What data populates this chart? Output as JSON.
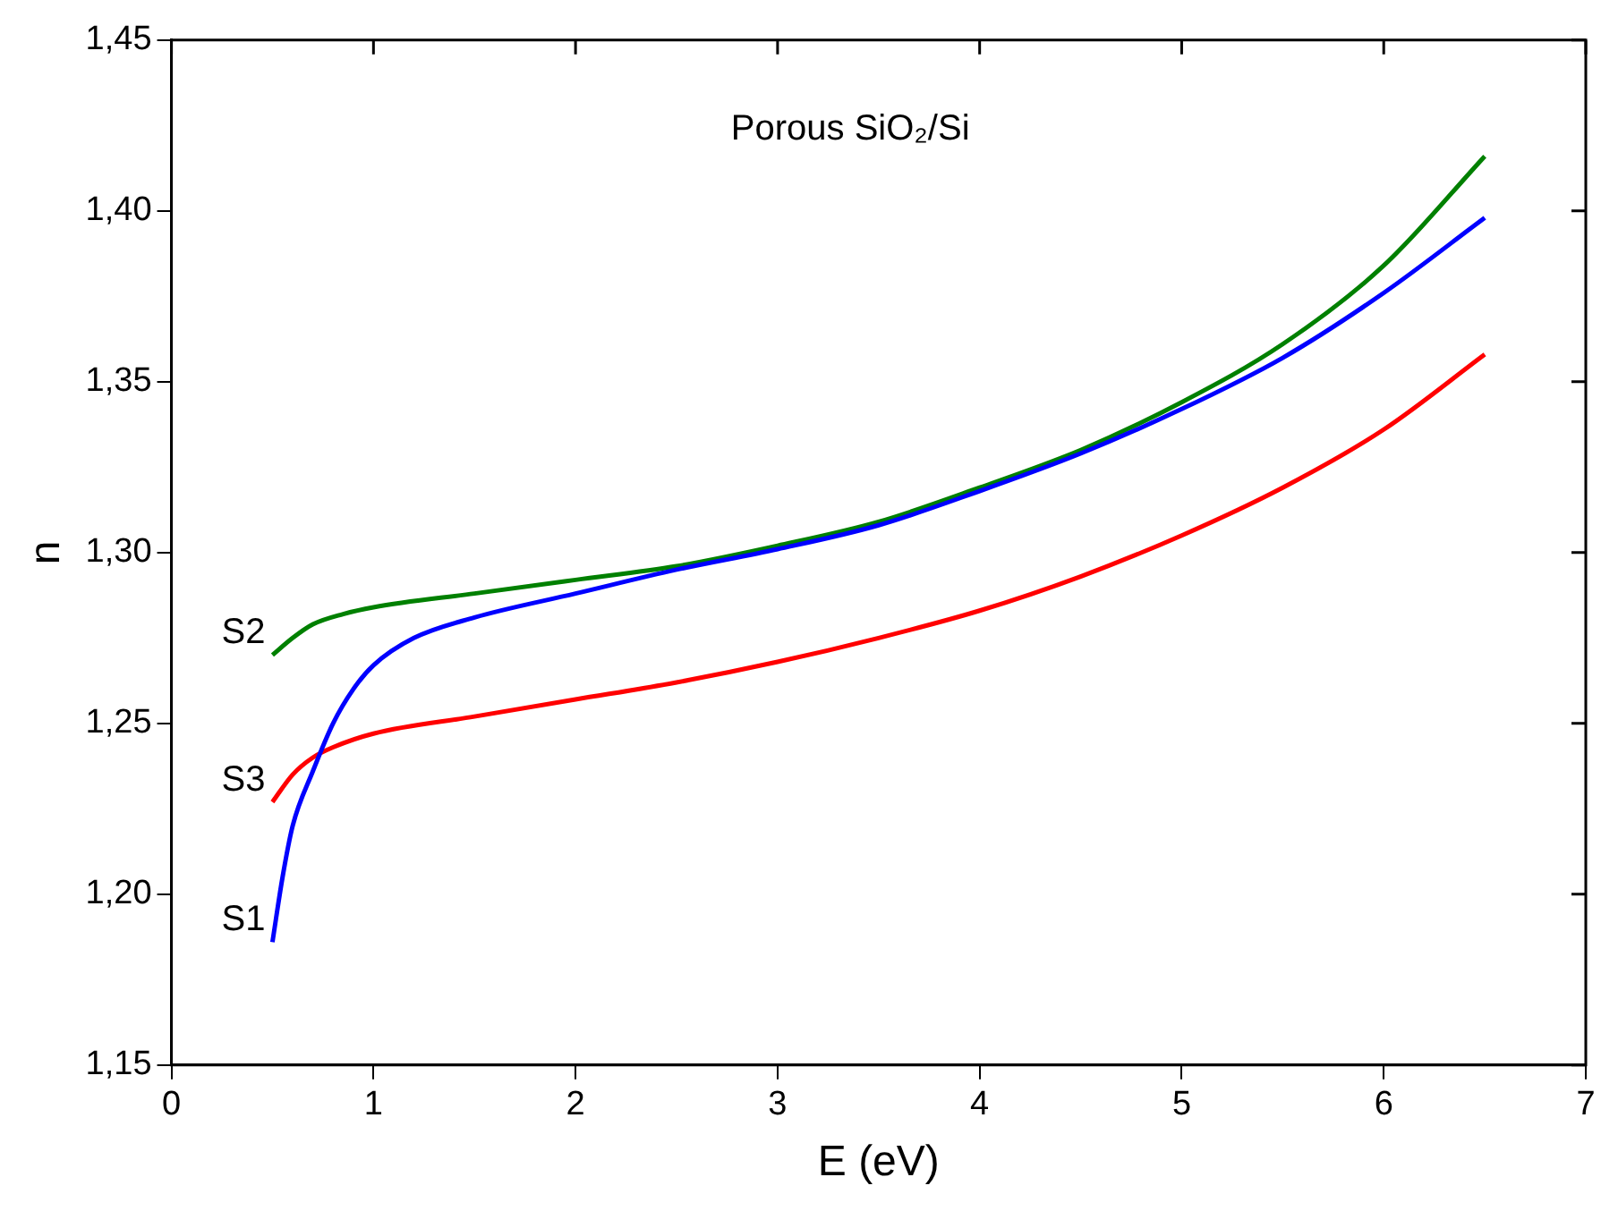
{
  "chart_data": {
    "type": "line",
    "xlabel": "E (eV)",
    "ylabel": "n",
    "annotations": [
      "Porous SiO₂/Si"
    ],
    "xlim": [
      0,
      7
    ],
    "xticks": [
      0,
      1,
      2,
      3,
      4,
      5,
      6,
      7
    ],
    "ylim": [
      1.15,
      1.45
    ],
    "yticks": [
      {
        "value": 1.15,
        "label": "1,15"
      },
      {
        "value": 1.2,
        "label": "1,20"
      },
      {
        "value": 1.25,
        "label": "1,25"
      },
      {
        "value": 1.3,
        "label": "1,30"
      },
      {
        "value": 1.35,
        "label": "1,35"
      },
      {
        "value": 1.4,
        "label": "1,40"
      },
      {
        "value": 1.45,
        "label": "1,45"
      }
    ],
    "grid": false,
    "legend": false,
    "series": [
      {
        "name": "S1",
        "color": "#0000ff",
        "x": [
          0.5,
          0.55,
          0.6,
          0.7,
          0.8,
          0.9,
          1,
          1.2,
          1.5,
          2,
          2.5,
          3,
          3.5,
          4,
          4.5,
          5,
          5.5,
          6,
          6.5
        ],
        "values": [
          1.186,
          1.205,
          1.22,
          1.236,
          1.25,
          1.26,
          1.267,
          1.275,
          1.281,
          1.288,
          1.295,
          1.301,
          1.308,
          1.318,
          1.329,
          1.342,
          1.357,
          1.376,
          1.398
        ]
      },
      {
        "name": "S2",
        "color": "#008000",
        "x": [
          0.5,
          0.6,
          0.7,
          0.85,
          1,
          1.5,
          2,
          2.5,
          3,
          3.5,
          4,
          4.5,
          5,
          5.5,
          6,
          6.5
        ],
        "values": [
          1.27,
          1.275,
          1.279,
          1.282,
          1.284,
          1.288,
          1.292,
          1.296,
          1.302,
          1.309,
          1.319,
          1.33,
          1.344,
          1.361,
          1.384,
          1.416
        ]
      },
      {
        "name": "S3",
        "color": "#ff0000",
        "x": [
          0.5,
          0.6,
          0.7,
          0.8,
          1,
          1.5,
          2,
          2.5,
          3,
          3.5,
          4,
          4.5,
          5,
          5.5,
          6,
          6.5
        ],
        "values": [
          1.227,
          1.235,
          1.24,
          1.243,
          1.247,
          1.252,
          1.257,
          1.262,
          1.268,
          1.275,
          1.283,
          1.293,
          1.305,
          1.319,
          1.336,
          1.358
        ]
      }
    ]
  }
}
